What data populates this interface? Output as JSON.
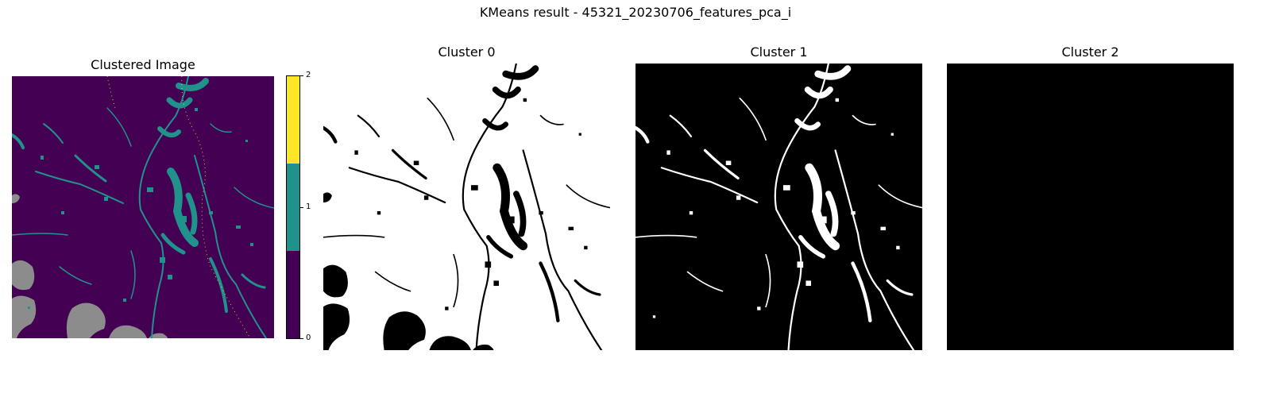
{
  "figure": {
    "suptitle": "KMeans result - 45321_20230706_features_pca_i"
  },
  "panels": [
    {
      "title": "Clustered Image",
      "kind": "clustered"
    },
    {
      "title": "Cluster 0",
      "kind": "mask0"
    },
    {
      "title": "Cluster 1",
      "kind": "mask1"
    },
    {
      "title": "Cluster 2",
      "kind": "mask2"
    }
  ],
  "colorbar": {
    "ticks": [
      "0",
      "1",
      "2"
    ],
    "colors": {
      "cluster_0": "#440154",
      "cluster_1": "#21918c",
      "cluster_2": "#fde725",
      "nodata": "#8c8c8c"
    }
  },
  "chart_data": {
    "type": "heatmap",
    "title": "KMeans result - 45321_20230706_features_pca_i",
    "cluster_labels": [
      0,
      1,
      2
    ],
    "colorbar_range": [
      0,
      2
    ],
    "colormap": "viridis",
    "subplot_titles": [
      "Clustered Image",
      "Cluster 0",
      "Cluster 1",
      "Cluster 2"
    ],
    "mask_colors": {
      "member": "#ffffff",
      "non_member": "#000000"
    }
  }
}
